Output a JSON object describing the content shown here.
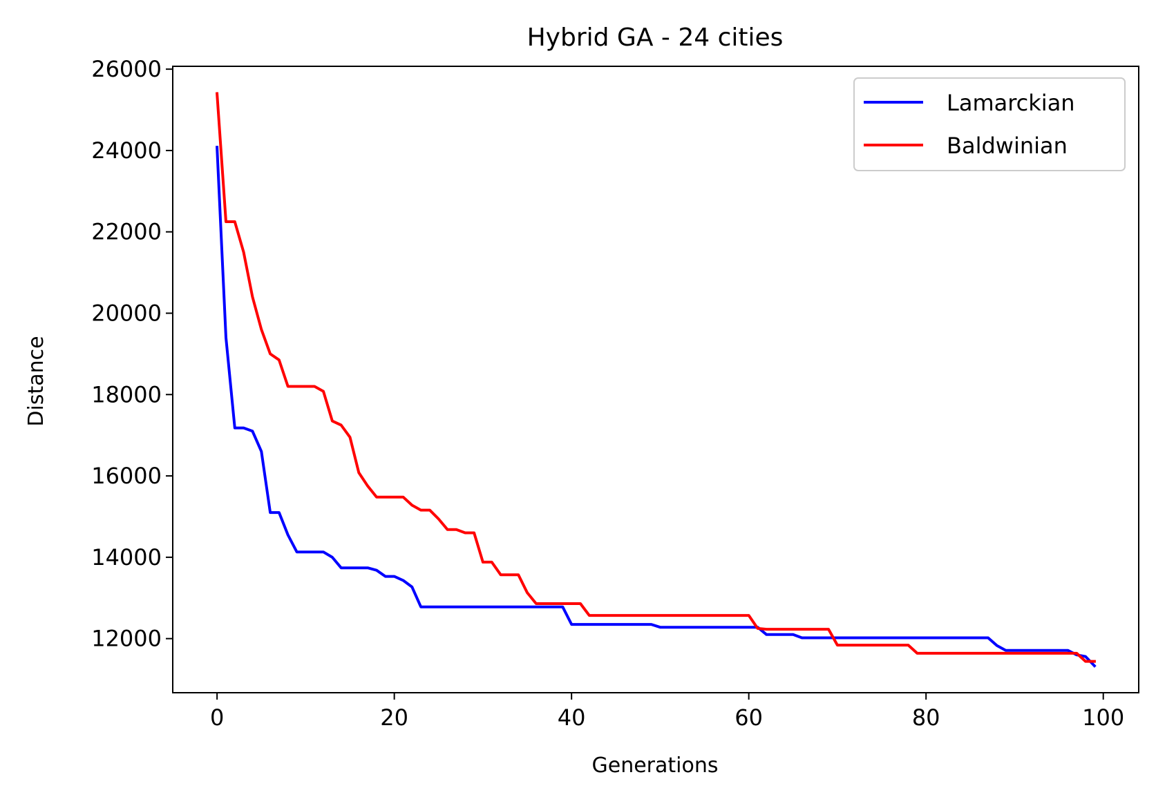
{
  "chart_data": {
    "type": "line",
    "title": "Hybrid GA - 24 cities",
    "xlabel": "Generations",
    "ylabel": "Distance",
    "xlim": [
      -5,
      104
    ],
    "ylim": [
      10670,
      26070
    ],
    "xticks": [
      0,
      20,
      40,
      60,
      80,
      100
    ],
    "yticks": [
      12000,
      14000,
      16000,
      18000,
      20000,
      22000,
      24000,
      26000
    ],
    "grid": false,
    "legend_position": "top-right",
    "series": [
      {
        "name": "Lamarckian",
        "color": "#0000ff",
        "x": [
          0,
          1,
          2,
          3,
          4,
          5,
          6,
          7,
          8,
          9,
          10,
          11,
          12,
          13,
          14,
          15,
          16,
          17,
          18,
          19,
          20,
          21,
          22,
          23,
          24,
          25,
          26,
          27,
          28,
          29,
          30,
          31,
          32,
          33,
          34,
          35,
          36,
          37,
          38,
          39,
          40,
          41,
          42,
          43,
          44,
          45,
          46,
          47,
          48,
          49,
          50,
          51,
          52,
          53,
          54,
          55,
          56,
          57,
          58,
          59,
          60,
          61,
          62,
          63,
          64,
          65,
          66,
          67,
          68,
          69,
          70,
          71,
          72,
          73,
          74,
          75,
          76,
          77,
          78,
          79,
          80,
          81,
          82,
          83,
          84,
          85,
          86,
          87,
          88,
          89,
          90,
          91,
          92,
          93,
          94,
          95,
          96,
          97,
          98,
          99
        ],
        "y": [
          24080,
          19400,
          17180,
          17180,
          17100,
          16600,
          15100,
          15100,
          14550,
          14130,
          14130,
          14130,
          14130,
          14000,
          13740,
          13740,
          13740,
          13740,
          13680,
          13530,
          13530,
          13430,
          13270,
          12780,
          12780,
          12780,
          12780,
          12780,
          12780,
          12780,
          12780,
          12780,
          12780,
          12780,
          12780,
          12780,
          12780,
          12780,
          12780,
          12780,
          12350,
          12350,
          12350,
          12350,
          12350,
          12350,
          12350,
          12350,
          12350,
          12350,
          12280,
          12280,
          12280,
          12280,
          12280,
          12280,
          12280,
          12280,
          12280,
          12280,
          12280,
          12280,
          12100,
          12100,
          12100,
          12100,
          12020,
          12020,
          12020,
          12020,
          12020,
          12020,
          12020,
          12020,
          12020,
          12020,
          12020,
          12020,
          12020,
          12020,
          12020,
          12020,
          12020,
          12020,
          12020,
          12020,
          12020,
          12020,
          11830,
          11710,
          11710,
          11710,
          11710,
          11710,
          11710,
          11710,
          11710,
          11600,
          11560,
          11330
        ]
      },
      {
        "name": "Baldwinian",
        "color": "#ff0000",
        "x": [
          0,
          1,
          2,
          3,
          4,
          5,
          6,
          7,
          8,
          9,
          10,
          11,
          12,
          13,
          14,
          15,
          16,
          17,
          18,
          19,
          20,
          21,
          22,
          23,
          24,
          25,
          26,
          27,
          28,
          29,
          30,
          31,
          32,
          33,
          34,
          35,
          36,
          37,
          38,
          39,
          40,
          41,
          42,
          43,
          44,
          45,
          46,
          47,
          48,
          49,
          50,
          51,
          52,
          53,
          54,
          55,
          56,
          57,
          58,
          59,
          60,
          61,
          62,
          63,
          64,
          65,
          66,
          67,
          68,
          69,
          70,
          71,
          72,
          73,
          74,
          75,
          76,
          77,
          78,
          79,
          80,
          81,
          82,
          83,
          84,
          85,
          86,
          87,
          88,
          89,
          90,
          91,
          92,
          93,
          94,
          95,
          96,
          97,
          98,
          99
        ],
        "y": [
          25400,
          22250,
          22250,
          21500,
          20400,
          19600,
          19000,
          18850,
          18200,
          18200,
          18200,
          18200,
          18080,
          17350,
          17250,
          16950,
          16080,
          15750,
          15480,
          15480,
          15480,
          15480,
          15280,
          15160,
          15160,
          14940,
          14680,
          14680,
          14600,
          14600,
          13880,
          13880,
          13570,
          13570,
          13570,
          13130,
          12860,
          12860,
          12860,
          12860,
          12860,
          12860,
          12570,
          12570,
          12570,
          12570,
          12570,
          12570,
          12570,
          12570,
          12570,
          12570,
          12570,
          12570,
          12570,
          12570,
          12570,
          12570,
          12570,
          12570,
          12570,
          12250,
          12230,
          12230,
          12230,
          12230,
          12230,
          12230,
          12230,
          12230,
          11840,
          11840,
          11840,
          11840,
          11840,
          11840,
          11840,
          11840,
          11840,
          11640,
          11640,
          11640,
          11640,
          11640,
          11640,
          11640,
          11640,
          11640,
          11640,
          11640,
          11640,
          11640,
          11640,
          11640,
          11640,
          11640,
          11640,
          11640,
          11440,
          11440
        ]
      }
    ]
  }
}
